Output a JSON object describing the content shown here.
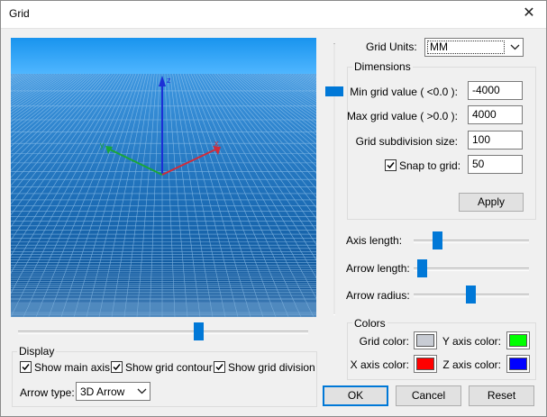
{
  "window": {
    "title": "Grid",
    "close_glyph": "✕"
  },
  "grid_units": {
    "label": "Grid Units:",
    "value": "MM"
  },
  "dimensions": {
    "legend": "Dimensions",
    "min_label": "Min grid value ( <0.0 ):",
    "min_value": "-4000",
    "max_label": "Max grid value ( >0.0 ):",
    "max_value": "4000",
    "subdiv_label": "Grid subdivision size:",
    "subdiv_value": "100",
    "snap_label": "Snap to grid:",
    "snap_checked": true,
    "snap_value": "50",
    "apply_label": "Apply"
  },
  "sliders": {
    "axis_length_label": "Axis length:",
    "arrow_length_label": "Arrow length:",
    "arrow_radius_label": "Arrow radius:"
  },
  "colors": {
    "legend": "Colors",
    "grid_label": "Grid color:",
    "grid_color": "#c8ccd4",
    "y_label": "Y axis color:",
    "y_color": "#00ff00",
    "x_label": "X axis color:",
    "x_color": "#ff0000",
    "z_label": "Z axis color:",
    "z_color": "#0000ff"
  },
  "display": {
    "legend": "Display",
    "show_main_axis": "Show main axis",
    "show_grid_contour": "Show grid contour",
    "show_grid_division": "Show grid division",
    "arrow_type_label": "Arrow type:",
    "arrow_type_value": "3D Arrow"
  },
  "viewport": {
    "axis_label_x": "x",
    "axis_label_y": "y",
    "axis_label_z": "z"
  },
  "buttons": {
    "ok": "OK",
    "cancel": "Cancel",
    "reset": "Reset"
  }
}
